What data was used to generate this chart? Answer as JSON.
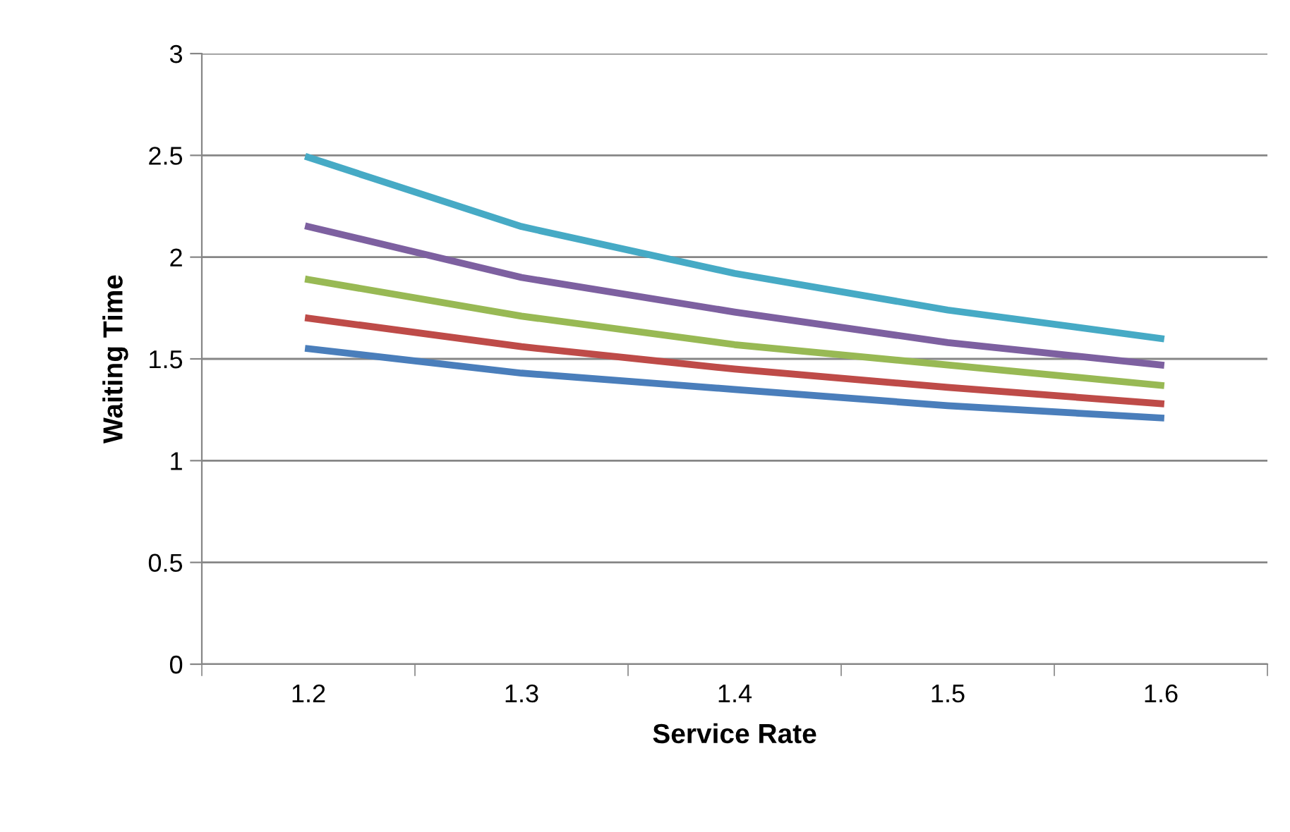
{
  "chart_data": {
    "type": "line",
    "xlabel": "Service Rate",
    "ylabel": "Waiting Time",
    "categories": [
      "1.2",
      "1.3",
      "1.4",
      "1.5",
      "1.6"
    ],
    "series": [
      {
        "color": "#4a7ebb",
        "values": [
          1.55,
          1.43,
          1.35,
          1.27,
          1.21
        ]
      },
      {
        "color": "#be4b48",
        "values": [
          1.7,
          1.56,
          1.45,
          1.36,
          1.28
        ]
      },
      {
        "color": "#98b954",
        "values": [
          1.89,
          1.71,
          1.57,
          1.47,
          1.37
        ]
      },
      {
        "color": "#7d60a0",
        "values": [
          2.15,
          1.9,
          1.73,
          1.58,
          1.47
        ]
      },
      {
        "color": "#46aac5",
        "values": [
          2.49,
          2.15,
          1.92,
          1.74,
          1.6
        ]
      }
    ],
    "ylim": [
      0,
      3
    ],
    "yticks": [
      0,
      0.5,
      1,
      1.5,
      2,
      2.5,
      3
    ],
    "grid": "y",
    "legend": false,
    "marker": "none",
    "line_style": "solid"
  }
}
